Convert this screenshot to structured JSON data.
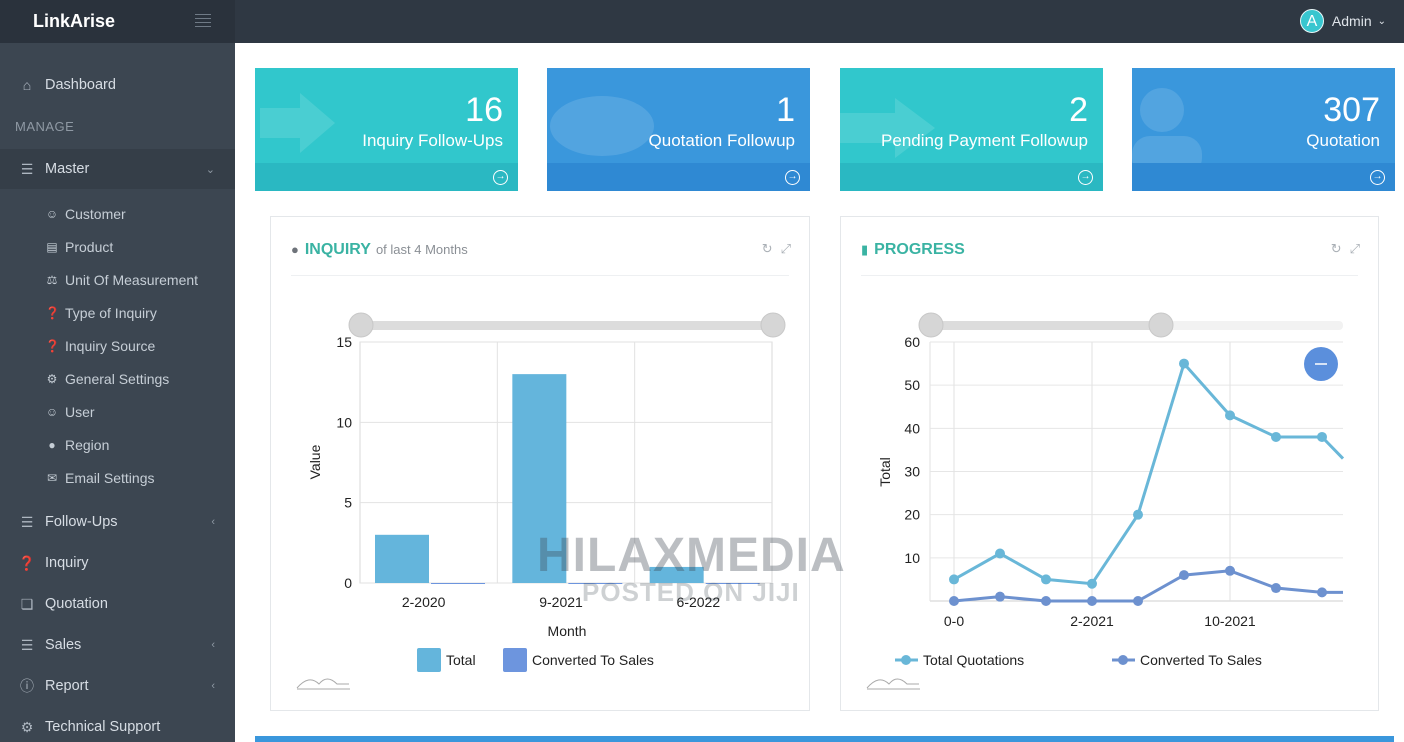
{
  "app": {
    "brand": "LinkArise",
    "user": "Admin",
    "avatar_letter": "A"
  },
  "sidebar": {
    "dashboard": "Dashboard",
    "section": "MANAGE",
    "master": "Master",
    "sub": [
      "Customer",
      "Product",
      "Unit Of Measurement",
      "Type of Inquiry",
      "Inquiry Source",
      "General Settings",
      "User",
      "Region",
      "Email Settings"
    ],
    "items": [
      "Follow-Ups",
      "Inquiry",
      "Quotation",
      "Sales",
      "Report",
      "Technical Support"
    ]
  },
  "tiles": [
    {
      "value": "16",
      "label": "Inquiry Follow-Ups",
      "color": "#31c7cc"
    },
    {
      "value": "1",
      "label": "Quotation Followup",
      "color": "#3a97dc"
    },
    {
      "value": "2",
      "label": "Pending Payment Followup",
      "color": "#31c7cc"
    },
    {
      "value": "307",
      "label": "Quotation",
      "color": "#3a97dc"
    }
  ],
  "panels": {
    "inquiry": {
      "title": "INQUIRY",
      "subtitle": "of last 4 Months"
    },
    "progress": {
      "title": "PROGRESS"
    }
  },
  "chart_data": [
    {
      "type": "bar",
      "categories": [
        "2-2020",
        "9-2021",
        "6-2022"
      ],
      "series": [
        {
          "name": "Total",
          "values": [
            3,
            13,
            1
          ],
          "color": "#64b5dc"
        },
        {
          "name": "Converted To Sales",
          "values": [
            0,
            0,
            0
          ],
          "color": "#6d95de"
        }
      ],
      "xlabel": "Month",
      "ylabel": "Value",
      "ylim": [
        0,
        15
      ],
      "yticks": [
        0,
        5,
        10,
        15
      ],
      "grid": true,
      "legend": "bottom"
    },
    {
      "type": "line",
      "x_tick_labels": [
        "0-0",
        "2-2021",
        "10-2021"
      ],
      "series": [
        {
          "name": "Total Quotations",
          "values": [
            5,
            11,
            5,
            4,
            20,
            55,
            43,
            38,
            38,
            33
          ],
          "color": "#69b7d8"
        },
        {
          "name": "Converted To Sales",
          "values": [
            0,
            1,
            0,
            0,
            0,
            6,
            7,
            3,
            2,
            2
          ],
          "color": "#6d91cf"
        }
      ],
      "ylabel": "Total",
      "ylim": [
        0,
        60
      ],
      "yticks": [
        10,
        20,
        30,
        40,
        50,
        60
      ],
      "grid": true,
      "legend": "bottom"
    }
  ],
  "watermark": {
    "line1": "HILAXMEDIA",
    "line2": "POSTED ON JIJI"
  }
}
